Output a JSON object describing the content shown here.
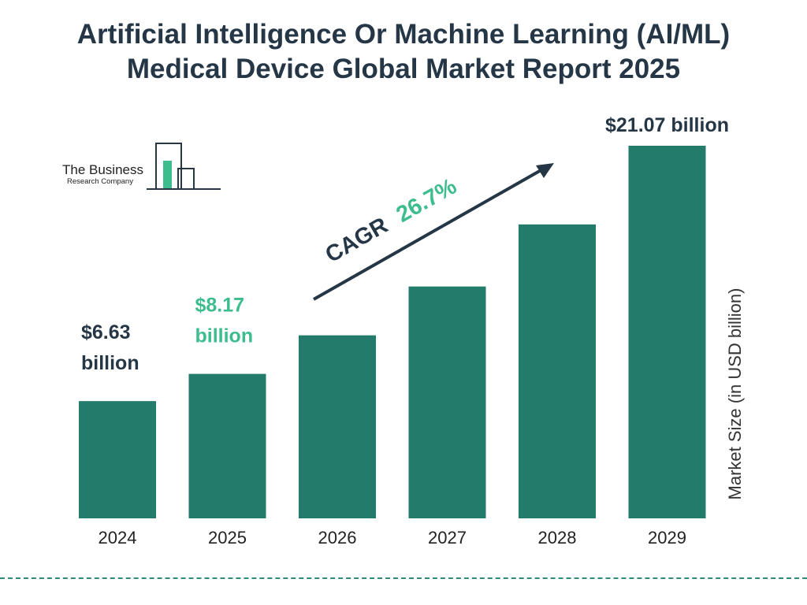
{
  "logo": {
    "line1": "The Business",
    "line2": "Research Company"
  },
  "colors": {
    "bar": "#227b6b",
    "title": "#253746",
    "highlight": "#3dbd8e",
    "dark_label": "#253746"
  },
  "cagr": {
    "label": "CAGR",
    "value": "26.7%"
  },
  "chart_data": {
    "type": "bar",
    "title_lines": [
      "Artificial Intelligence Or Machine Learning (AI/ML)",
      "Medical Device Global Market Report 2025"
    ],
    "categories": [
      "2024",
      "2025",
      "2026",
      "2027",
      "2028",
      "2029"
    ],
    "values": [
      6.63,
      8.17,
      10.35,
      13.11,
      16.62,
      21.07
    ],
    "ylabel": "Market Size (in USD billion)",
    "xlabel": "",
    "ylim": [
      0,
      21.07
    ],
    "grid": false,
    "data_labels": [
      {
        "index": 0,
        "lines": [
          "$6.63",
          "billion"
        ],
        "style": "dark"
      },
      {
        "index": 1,
        "lines": [
          "$8.17",
          "billion"
        ],
        "style": "highlight"
      },
      {
        "index": 5,
        "lines": [
          "$21.07 billion"
        ],
        "style": "dark"
      }
    ]
  }
}
